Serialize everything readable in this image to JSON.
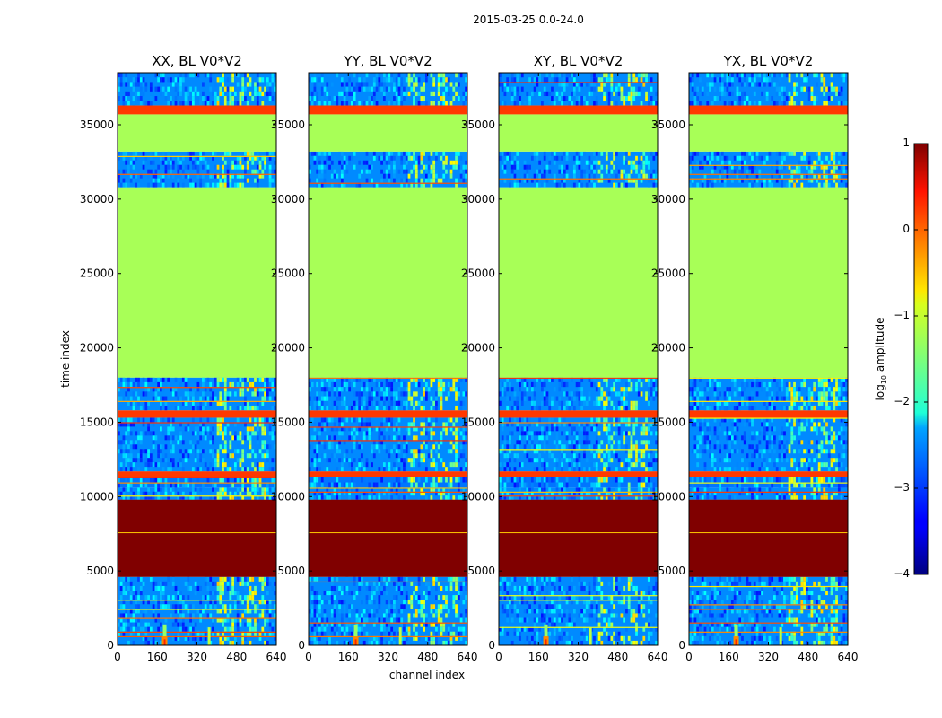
{
  "chart_data": {
    "type": "heatmap",
    "suptitle": "2015-03-25 0.0-24.0",
    "xlabel": "channel index",
    "ylabel": "time index",
    "xlim": [
      0,
      640
    ],
    "ylim": [
      0,
      38500
    ],
    "x_ticks": [
      0,
      160,
      320,
      480,
      640
    ],
    "y_ticks": [
      0,
      5000,
      10000,
      15000,
      20000,
      25000,
      30000,
      35000
    ],
    "panels": [
      {
        "title": "XX, BL V0*V2"
      },
      {
        "title": "YY, BL V0*V2"
      },
      {
        "title": "XY, BL V0*V2"
      },
      {
        "title": "YX, BL V0*V2"
      }
    ],
    "colorbar": {
      "label_main": "log",
      "label_sub": "10",
      "label_tail": " amplitude",
      "range": [
        -4,
        1
      ],
      "ticks": [
        "1",
        "0",
        "−1",
        "−2",
        "−3",
        "−4"
      ],
      "colormap": "jet"
    },
    "bands": [
      {
        "t0": 0,
        "t1": 4600,
        "kind": "noise",
        "level": -2.7
      },
      {
        "t0": 4600,
        "t1": 9800,
        "kind": "saturated",
        "level": 1
      },
      {
        "t0": 9800,
        "t1": 10600,
        "kind": "noise",
        "level": -2.7
      },
      {
        "t0": 10600,
        "t1": 11300,
        "kind": "noise",
        "level": -2.8
      },
      {
        "t0": 11300,
        "t1": 11700,
        "kind": "flag",
        "level": 0.1
      },
      {
        "t0": 11700,
        "t1": 15300,
        "kind": "noise",
        "level": -2.7
      },
      {
        "t0": 15300,
        "t1": 15800,
        "kind": "flag",
        "level": 0.1
      },
      {
        "t0": 15800,
        "t1": 18000,
        "kind": "noise",
        "level": -2.7
      },
      {
        "t0": 18000,
        "t1": 30800,
        "kind": "flat",
        "level": -1.3
      },
      {
        "t0": 30800,
        "t1": 33200,
        "kind": "noise",
        "level": -2.7
      },
      {
        "t0": 33200,
        "t1": 35700,
        "kind": "flat",
        "level": -1.3
      },
      {
        "t0": 35700,
        "t1": 36300,
        "kind": "flag",
        "level": 0.1
      },
      {
        "t0": 36300,
        "t1": 38500,
        "kind": "noise",
        "level": -2.7
      }
    ],
    "rfi_channels": [
      [
        400,
        440
      ],
      [
        455,
        470
      ],
      [
        490,
        505
      ],
      [
        520,
        560
      ],
      [
        575,
        600
      ]
    ],
    "burst_channel": 190
  }
}
